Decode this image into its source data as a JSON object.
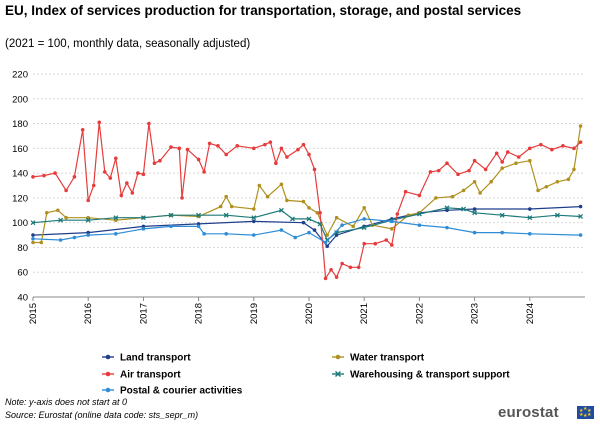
{
  "chart_data": {
    "type": "line",
    "title": "EU, Index of services production for transportation, storage, and postal services",
    "subtitle": "(2021 = 100, monthly data, seasonally adjusted)",
    "ylim": [
      40,
      220
    ],
    "yticks": [
      "40",
      "60",
      "80",
      "100",
      "120",
      "140",
      "160",
      "180",
      "200",
      "220"
    ],
    "xlim": [
      2015,
      2025
    ],
    "xticks": [
      "2015",
      "2016",
      "2017",
      "2018",
      "2019",
      "2020",
      "2021",
      "2022",
      "2023",
      "2024"
    ],
    "series": [
      {
        "name": "Land transport",
        "color": "#1f3e8c",
        "marker": "circle",
        "points": [
          [
            2015,
            90
          ],
          [
            2016,
            92
          ],
          [
            2017,
            97
          ],
          [
            2018,
            99
          ],
          [
            2019,
            101
          ],
          [
            2019.9,
            100
          ],
          [
            2020.1,
            94
          ],
          [
            2020.33,
            81
          ],
          [
            2020.5,
            90
          ],
          [
            2021,
            97
          ],
          [
            2021.5,
            103
          ],
          [
            2022,
            108
          ],
          [
            2022.5,
            110
          ],
          [
            2023,
            111
          ],
          [
            2024,
            111
          ],
          [
            2024.92,
            113
          ]
        ]
      },
      {
        "name": "Water transport",
        "color": "#b09120",
        "marker": "circle",
        "points": [
          [
            2015,
            84
          ],
          [
            2015.15,
            84
          ],
          [
            2015.25,
            108
          ],
          [
            2015.45,
            110
          ],
          [
            2015.6,
            104
          ],
          [
            2016,
            104
          ],
          [
            2016.5,
            102
          ],
          [
            2017,
            104
          ],
          [
            2017.5,
            106
          ],
          [
            2018,
            105
          ],
          [
            2018.4,
            113
          ],
          [
            2018.5,
            121
          ],
          [
            2018.6,
            113
          ],
          [
            2019,
            111
          ],
          [
            2019.1,
            130
          ],
          [
            2019.25,
            121
          ],
          [
            2019.5,
            131
          ],
          [
            2019.6,
            118
          ],
          [
            2019.9,
            117
          ],
          [
            2020,
            112
          ],
          [
            2020.15,
            108
          ],
          [
            2020.33,
            90
          ],
          [
            2020.5,
            104
          ],
          [
            2020.8,
            97
          ],
          [
            2021,
            112
          ],
          [
            2021.15,
            98
          ],
          [
            2021.5,
            95
          ],
          [
            2021.8,
            106
          ],
          [
            2022,
            108
          ],
          [
            2022.3,
            120
          ],
          [
            2022.6,
            121
          ],
          [
            2022.8,
            126
          ],
          [
            2023,
            133
          ],
          [
            2023.1,
            124
          ],
          [
            2023.3,
            133
          ],
          [
            2023.5,
            144
          ],
          [
            2023.75,
            148
          ],
          [
            2024,
            150
          ],
          [
            2024.15,
            126
          ],
          [
            2024.3,
            129
          ],
          [
            2024.5,
            133
          ],
          [
            2024.7,
            135
          ],
          [
            2024.8,
            143
          ],
          [
            2024.92,
            178
          ]
        ]
      },
      {
        "name": "Air transport",
        "color": "#e63c3c",
        "marker": "circle",
        "points": [
          [
            2015,
            137
          ],
          [
            2015.2,
            138
          ],
          [
            2015.4,
            140
          ],
          [
            2015.6,
            126
          ],
          [
            2015.75,
            137
          ],
          [
            2015.9,
            175
          ],
          [
            2016,
            118
          ],
          [
            2016.1,
            130
          ],
          [
            2016.2,
            181
          ],
          [
            2016.3,
            141
          ],
          [
            2016.4,
            136
          ],
          [
            2016.5,
            152
          ],
          [
            2016.6,
            122
          ],
          [
            2016.7,
            132
          ],
          [
            2016.8,
            124
          ],
          [
            2016.9,
            140
          ],
          [
            2017,
            139
          ],
          [
            2017.1,
            180
          ],
          [
            2017.2,
            148
          ],
          [
            2017.3,
            150
          ],
          [
            2017.5,
            161
          ],
          [
            2017.65,
            160
          ],
          [
            2017.7,
            120
          ],
          [
            2017.8,
            159
          ],
          [
            2018,
            151
          ],
          [
            2018.1,
            141
          ],
          [
            2018.2,
            164
          ],
          [
            2018.35,
            162
          ],
          [
            2018.5,
            155
          ],
          [
            2018.7,
            162
          ],
          [
            2019,
            160
          ],
          [
            2019.2,
            163
          ],
          [
            2019.3,
            165
          ],
          [
            2019.4,
            148
          ],
          [
            2019.5,
            160
          ],
          [
            2019.6,
            153
          ],
          [
            2019.8,
            159
          ],
          [
            2019.9,
            163
          ],
          [
            2020,
            155
          ],
          [
            2020.1,
            143
          ],
          [
            2020.2,
            108
          ],
          [
            2020.3,
            55
          ],
          [
            2020.4,
            62
          ],
          [
            2020.5,
            56
          ],
          [
            2020.6,
            67
          ],
          [
            2020.75,
            64
          ],
          [
            2020.9,
            64
          ],
          [
            2021,
            83
          ],
          [
            2021.2,
            83
          ],
          [
            2021.4,
            86
          ],
          [
            2021.5,
            82
          ],
          [
            2021.6,
            107
          ],
          [
            2021.75,
            125
          ],
          [
            2022,
            122
          ],
          [
            2022.2,
            141
          ],
          [
            2022.35,
            142
          ],
          [
            2022.5,
            148
          ],
          [
            2022.7,
            139
          ],
          [
            2022.9,
            142
          ],
          [
            2023,
            150
          ],
          [
            2023.2,
            143
          ],
          [
            2023.4,
            156
          ],
          [
            2023.5,
            149
          ],
          [
            2023.6,
            157
          ],
          [
            2023.8,
            153
          ],
          [
            2024,
            160
          ],
          [
            2024.2,
            163
          ],
          [
            2024.4,
            159
          ],
          [
            2024.6,
            162
          ],
          [
            2024.8,
            160
          ],
          [
            2024.92,
            165
          ]
        ]
      },
      {
        "name": "Warehousing & transport support",
        "color": "#1e7a7a",
        "marker": "cross",
        "points": [
          [
            2015,
            100
          ],
          [
            2015.5,
            102
          ],
          [
            2016,
            102
          ],
          [
            2016.5,
            104
          ],
          [
            2017,
            104
          ],
          [
            2017.5,
            106
          ],
          [
            2018,
            106
          ],
          [
            2018.5,
            106
          ],
          [
            2019,
            104
          ],
          [
            2019.5,
            110
          ],
          [
            2019.7,
            103
          ],
          [
            2020,
            103
          ],
          [
            2020.2,
            99
          ],
          [
            2020.33,
            86
          ],
          [
            2020.5,
            92
          ],
          [
            2021,
            96
          ],
          [
            2021.5,
            102
          ],
          [
            2022,
            107
          ],
          [
            2022.5,
            112
          ],
          [
            2022.8,
            111
          ],
          [
            2023,
            108
          ],
          [
            2023.5,
            106
          ],
          [
            2024,
            104
          ],
          [
            2024.5,
            106
          ],
          [
            2024.92,
            105
          ]
        ]
      },
      {
        "name": "Postal & courier activities",
        "color": "#2e8dd6",
        "marker": "circle",
        "points": [
          [
            2015,
            87
          ],
          [
            2015.5,
            86
          ],
          [
            2015.75,
            88
          ],
          [
            2016,
            90
          ],
          [
            2016.5,
            91
          ],
          [
            2017,
            95
          ],
          [
            2017.5,
            97
          ],
          [
            2018,
            97
          ],
          [
            2018.1,
            91
          ],
          [
            2018.5,
            91
          ],
          [
            2019,
            90
          ],
          [
            2019.5,
            94
          ],
          [
            2019.75,
            88
          ],
          [
            2020,
            92
          ],
          [
            2020.3,
            84
          ],
          [
            2020.6,
            98
          ],
          [
            2021,
            103
          ],
          [
            2021.5,
            101
          ],
          [
            2022,
            98
          ],
          [
            2022.5,
            96
          ],
          [
            2023,
            92
          ],
          [
            2023.5,
            92
          ],
          [
            2024,
            91
          ],
          [
            2024.92,
            90
          ]
        ]
      }
    ],
    "legend_position": "bottom",
    "grid": true
  },
  "notes": {
    "note1": "Note: y-axis does not start at 0",
    "note2": "Source: Eurostat (online data code: sts_sepr_m)"
  },
  "branding": {
    "logo_text": "eurostat"
  }
}
